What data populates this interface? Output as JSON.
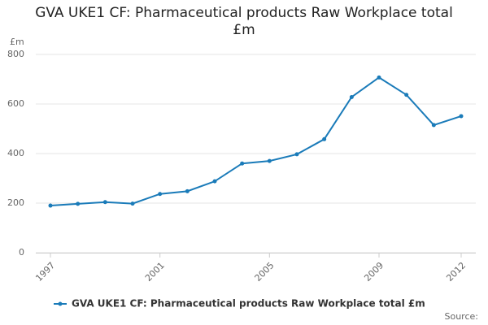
{
  "chart_data": {
    "type": "line",
    "title": "GVA UKE1 CF: Pharmaceutical products Raw Workplace total £m",
    "y_label": "£m",
    "source": "Source:",
    "x": [
      1997,
      1998,
      1999,
      2000,
      2001,
      2002,
      2003,
      2004,
      2005,
      2006,
      2007,
      2008,
      2009,
      2010,
      2011,
      2012
    ],
    "series": [
      {
        "name": "GVA UKE1 CF: Pharmaceutical products Raw Workplace total £m",
        "color": "#1a7bb9",
        "values": [
          190,
          197,
          204,
          198,
          237,
          248,
          288,
          360,
          370,
          397,
          458,
          628,
          707,
          637,
          515,
          551
        ]
      }
    ],
    "xlim": [
      1997,
      2012
    ],
    "xticks": [
      1997,
      2001,
      2005,
      2009,
      2012
    ],
    "ylim": [
      0,
      800
    ],
    "yticks": [
      0,
      200,
      400,
      600,
      800
    ],
    "grid": true
  }
}
